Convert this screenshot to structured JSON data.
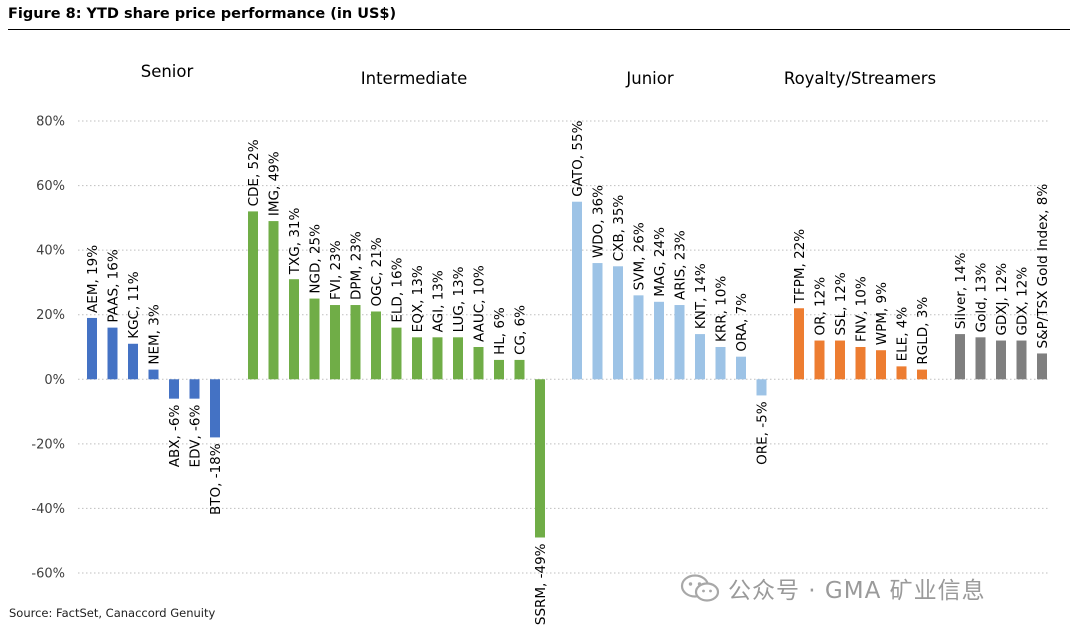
{
  "figure": {
    "title": "Figure 8: YTD share price performance (in US$)",
    "source": "Source: FactSet, Canaccord Genuity",
    "watermark": "公众号 · GMA 矿业信息"
  },
  "chart_data": {
    "type": "bar",
    "title": "YTD share price performance (in US$)",
    "xlabel": "",
    "ylabel": "",
    "ylim": [
      -60,
      80
    ],
    "yticks": [
      80,
      60,
      40,
      20,
      0,
      -20,
      -40,
      -60
    ],
    "ytick_labels": [
      "80%",
      "60%",
      "40%",
      "20%",
      "0%",
      "-20%",
      "-40%",
      "-60%"
    ],
    "grid": true,
    "groups": [
      {
        "name": "Senior",
        "color": "#4472c4",
        "bars": [
          {
            "label": "AEM, 19%",
            "value": 19
          },
          {
            "label": "PAAS, 16%",
            "value": 16
          },
          {
            "label": "KGC, 11%",
            "value": 11
          },
          {
            "label": "NEM, 3%",
            "value": 3
          },
          {
            "label": "ABX, -6%",
            "value": -6
          },
          {
            "label": "EDV, -6%",
            "value": -6
          },
          {
            "label": "BTO, -18%",
            "value": -18
          }
        ]
      },
      {
        "name": "Intermediate",
        "color": "#70ad47",
        "bars": [
          {
            "label": "CDE, 52%",
            "value": 52
          },
          {
            "label": "IMG, 49%",
            "value": 49
          },
          {
            "label": "TXG, 31%",
            "value": 31
          },
          {
            "label": "NGD, 25%",
            "value": 25
          },
          {
            "label": "FVI, 23%",
            "value": 23
          },
          {
            "label": "DPM, 23%",
            "value": 23
          },
          {
            "label": "OGC, 21%",
            "value": 21
          },
          {
            "label": "ELD, 16%",
            "value": 16
          },
          {
            "label": "EQX, 13%",
            "value": 13
          },
          {
            "label": "AGI, 13%",
            "value": 13
          },
          {
            "label": "LUG, 13%",
            "value": 13
          },
          {
            "label": "AAUC, 10%",
            "value": 10
          },
          {
            "label": "HL, 6%",
            "value": 6
          },
          {
            "label": "CG, 6%",
            "value": 6
          },
          {
            "label": "SSRM, -49%",
            "value": -49
          }
        ]
      },
      {
        "name": "Junior",
        "color": "#9dc3e6",
        "bars": [
          {
            "label": "GATO, 55%",
            "value": 55
          },
          {
            "label": "WDO, 36%",
            "value": 36
          },
          {
            "label": "CXB, 35%",
            "value": 35
          },
          {
            "label": "SVM, 26%",
            "value": 26
          },
          {
            "label": "MAG, 24%",
            "value": 24
          },
          {
            "label": "ARIS, 23%",
            "value": 23
          },
          {
            "label": "KNT, 14%",
            "value": 14
          },
          {
            "label": "KRR, 10%",
            "value": 10
          },
          {
            "label": "ORA, 7%",
            "value": 7
          },
          {
            "label": "ORE, -5%",
            "value": -5
          }
        ]
      },
      {
        "name": "Royalty/Streamers",
        "color": "#ed7d31",
        "bars": [
          {
            "label": "TFPM, 22%",
            "value": 22
          },
          {
            "label": "OR, 12%",
            "value": 12
          },
          {
            "label": "SSL, 12%",
            "value": 12
          },
          {
            "label": "FNV, 10%",
            "value": 10
          },
          {
            "label": "WPM, 9%",
            "value": 9
          },
          {
            "label": "ELE, 4%",
            "value": 4
          },
          {
            "label": "RGLD, 3%",
            "value": 3
          }
        ]
      },
      {
        "name": "",
        "color": "#7f7f7f",
        "bars": [
          {
            "label": "Silver, 14%",
            "value": 14
          },
          {
            "label": "Gold, 13%",
            "value": 13
          },
          {
            "label": "GDXJ, 12%",
            "value": 12
          },
          {
            "label": "GDX, 12%",
            "value": 12
          },
          {
            "label": "S&P/TSX Gold Index, 8%",
            "value": 8
          }
        ]
      }
    ]
  }
}
